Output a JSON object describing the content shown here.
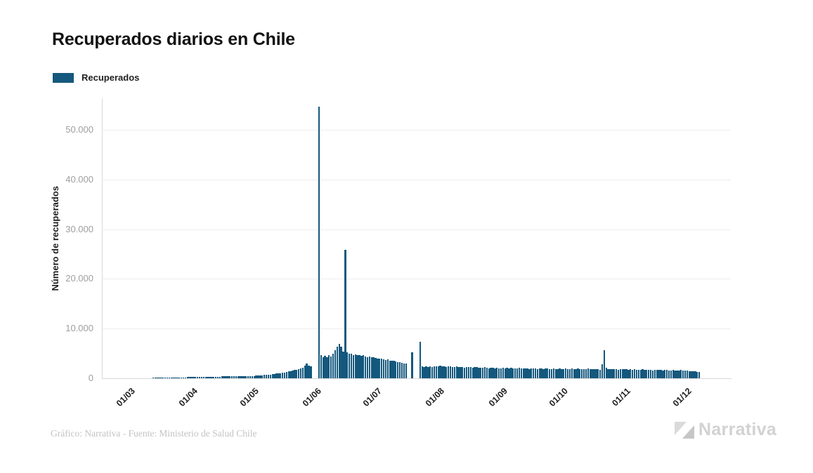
{
  "header": {
    "title": "Recuperados diarios en Chile"
  },
  "legend": {
    "label": "Recuperados"
  },
  "y_axis": {
    "title": "Número de recuperados",
    "tick_labels": [
      "0",
      "10.000",
      "20.000",
      "30.000",
      "40.000",
      "50.000"
    ]
  },
  "x_axis": {
    "tick_labels": [
      "01/03",
      "01/04",
      "01/05",
      "01/06",
      "01/07",
      "01/08",
      "01/09",
      "01/10",
      "01/11",
      "01/12"
    ]
  },
  "footer": {
    "credit": "Gráfico: Narrativa - Fuente: Ministerio de Salud Chile",
    "brand_name": "Narrativa"
  },
  "colors": {
    "bar": "#14587d",
    "grid": "#ededed",
    "axis": "#d8d8d8",
    "y_tick_text": "#9e9e9e",
    "x_tick_text": "#1f1f1f",
    "title_text": "#121212",
    "footer_text": "#c3c3c3",
    "brand_text": "#d2d2d2",
    "brand_icon_light": "#dadada",
    "brand_icon_dark": "#c6c6c6"
  },
  "chart_data": {
    "type": "bar",
    "title": "Recuperados diarios en Chile",
    "ylabel": "Número de recuperados",
    "xlabel": "",
    "series_name": "Recuperados",
    "x_unit": "day",
    "x_start_label": "01/03",
    "y_ticks": [
      0,
      10000,
      20000,
      30000,
      40000,
      50000
    ],
    "ylim": [
      0,
      55000
    ],
    "grid": "horizontal",
    "legend_position": "top-left",
    "month_tick_labels": [
      "01/03",
      "01/04",
      "01/05",
      "01/06",
      "01/07",
      "01/08",
      "01/09",
      "01/10",
      "01/11",
      "01/12"
    ],
    "month_tick_indices": [
      0,
      31,
      61,
      92,
      122,
      153,
      184,
      214,
      245,
      275
    ],
    "notable_points": [
      {
        "x_label": "02/06",
        "value": 54600
      },
      {
        "x_label": "15/06",
        "value": 25900
      },
      {
        "x_label": "22/07",
        "value": 7300
      },
      {
        "x_label": "21/10",
        "value": 5650
      }
    ],
    "values": [
      20,
      25,
      30,
      30,
      35,
      40,
      45,
      50,
      55,
      60,
      70,
      75,
      80,
      90,
      95,
      100,
      110,
      115,
      120,
      130,
      140,
      150,
      155,
      165,
      175,
      185,
      195,
      210,
      225,
      240,
      255,
      265,
      270,
      280,
      285,
      295,
      300,
      310,
      315,
      320,
      330,
      335,
      345,
      350,
      355,
      365,
      370,
      380,
      385,
      390,
      395,
      400,
      405,
      410,
      420,
      425,
      430,
      435,
      440,
      445,
      450,
      470,
      500,
      530,
      560,
      600,
      640,
      680,
      720,
      770,
      820,
      870,
      930,
      990,
      1050,
      1120,
      1190,
      1270,
      1350,
      1440,
      1530,
      1630,
      1730,
      1840,
      1960,
      2080,
      2500,
      2900,
      2600,
      2400,
      0,
      0,
      0,
      54600,
      4600,
      4200,
      4500,
      4300,
      4700,
      4400,
      5000,
      5600,
      6400,
      6900,
      6300,
      5400,
      25900,
      5200,
      4900,
      5000,
      4700,
      4800,
      4600,
      4700,
      4500,
      4600,
      4400,
      4300,
      4400,
      4200,
      4300,
      4100,
      4000,
      3900,
      3950,
      3800,
      3700,
      3750,
      3600,
      3500,
      3550,
      3400,
      3300,
      3200,
      3100,
      3000,
      2900,
      0,
      0,
      5200,
      0,
      0,
      0,
      7300,
      2400,
      2300,
      2400,
      2250,
      2350,
      2300,
      2400,
      2350,
      2450,
      2500,
      2400,
      2450,
      2300,
      2400,
      2350,
      2250,
      2300,
      2400,
      2200,
      2300,
      2250,
      2150,
      2250,
      2300,
      2200,
      2100,
      2200,
      2250,
      2150,
      2100,
      2150,
      2200,
      2100,
      2050,
      2150,
      2100,
      2000,
      2100,
      2050,
      2000,
      2100,
      2050,
      2150,
      2000,
      2100,
      2050,
      1950,
      2050,
      2100,
      2000,
      1950,
      2050,
      2000,
      1900,
      2000,
      2050,
      1950,
      1900,
      2000,
      1950,
      1900,
      1950,
      2050,
      1900,
      1850,
      1950,
      1900,
      1850,
      1950,
      1900,
      1900,
      1950,
      1850,
      1900,
      2000,
      1900,
      1850,
      1950,
      1900,
      1800,
      1900,
      1850,
      1950,
      1900,
      1800,
      1850,
      1900,
      1800,
      1750,
      2800,
      5650,
      2100,
      1900,
      1850,
      1800,
      1900,
      1850,
      1750,
      1800,
      1850,
      1800,
      1800,
      1750,
      1850,
      1700,
      1800,
      1750,
      1650,
      1750,
      1800,
      1700,
      1650,
      1750,
      1700,
      1600,
      1700,
      1650,
      1750,
      1650,
      1550,
      1650,
      1700,
      1600,
      1550,
      1650,
      1600,
      1500,
      1600,
      1650,
      1550,
      1500,
      1500,
      1400,
      1450,
      1350,
      1400,
      1300,
      1250
    ]
  }
}
